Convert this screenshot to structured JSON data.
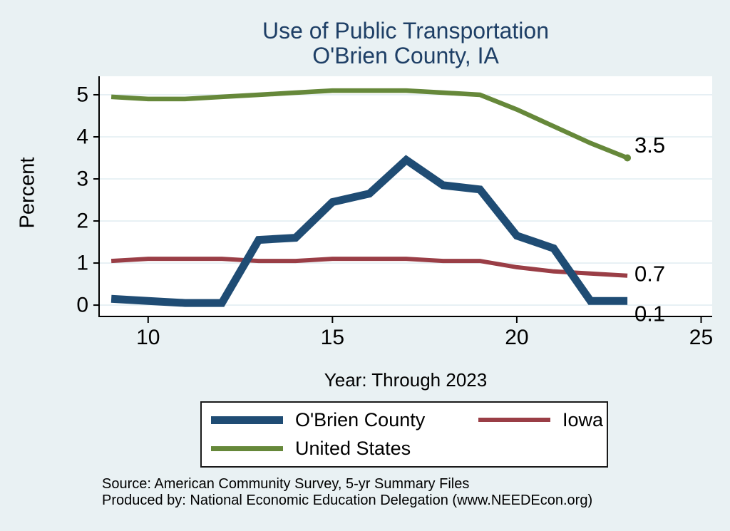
{
  "page": {
    "background": "#e9f1f3"
  },
  "title": {
    "line1": "Use of Public Transportation",
    "line2": "O'Brien County, IA",
    "color": "#1e3f66"
  },
  "footer": {
    "line1": "Source: American Community Survey, 5-yr Summary Files",
    "line2": "Produced by: National Economic Education Delegation (www.NEEDEcon.org)"
  },
  "chart_data": {
    "type": "line",
    "title": "Use of Public Transportation — O'Brien County, IA",
    "xlabel": "Year: Through 2023",
    "ylabel": "Percent",
    "x_ticks": [
      10,
      15,
      20,
      25
    ],
    "y_ticks": [
      0,
      1,
      2,
      3,
      4,
      5
    ],
    "xlim": [
      8.67,
      25.3
    ],
    "ylim": [
      -0.27,
      5.44
    ],
    "grid": "horizontal",
    "legend_position": "bottom",
    "colors": {
      "grid": "#e2edf2",
      "axis": "#000000",
      "plot_bg": "#ffffff",
      "label_text": "#000000"
    },
    "x": [
      9,
      10,
      11,
      12,
      13,
      14,
      15,
      16,
      17,
      18,
      19,
      20,
      21,
      22,
      23
    ],
    "series": [
      {
        "name": "O'Brien County",
        "color": "#1f4c74",
        "width": 11,
        "values": [
          0.15,
          0.1,
          0.05,
          0.05,
          1.55,
          1.6,
          2.45,
          2.65,
          3.45,
          2.85,
          2.75,
          1.65,
          1.35,
          0.1,
          0.1
        ],
        "end_label": "0.1",
        "end_label_dy": 18,
        "end_dot": false
      },
      {
        "name": "Iowa",
        "color": "#9a3e46",
        "width": 6,
        "values": [
          1.05,
          1.1,
          1.1,
          1.1,
          1.05,
          1.05,
          1.1,
          1.1,
          1.1,
          1.05,
          1.05,
          0.9,
          0.8,
          0.75,
          0.7
        ],
        "end_label": "0.7",
        "end_label_dy": -3,
        "end_dot": false
      },
      {
        "name": "United States",
        "color": "#66883a",
        "width": 6.5,
        "values": [
          4.95,
          4.9,
          4.9,
          4.95,
          5.0,
          5.05,
          5.1,
          5.1,
          5.1,
          5.05,
          5.0,
          4.65,
          4.25,
          3.85,
          3.5
        ],
        "end_label": "3.5",
        "end_label_dy": -18,
        "end_dot": true
      }
    ]
  }
}
